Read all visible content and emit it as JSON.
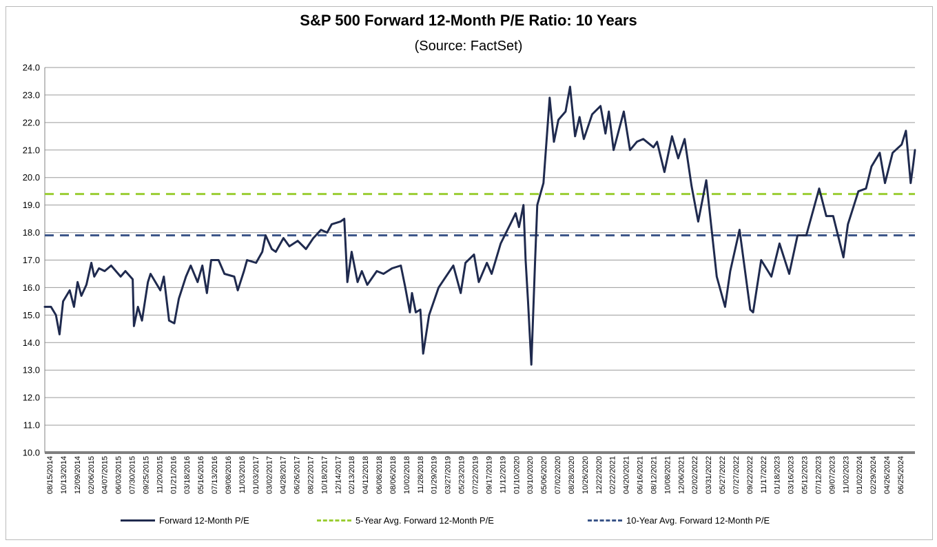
{
  "chart_data": {
    "type": "line",
    "title": "S&P 500 Forward 12-Month P/E Ratio: 10 Years",
    "subtitle": "(Source: FactSet)",
    "ylim": [
      10.0,
      24.0
    ],
    "yticks": [
      "10.0",
      "11.0",
      "12.0",
      "13.0",
      "14.0",
      "15.0",
      "16.0",
      "17.0",
      "18.0",
      "19.0",
      "20.0",
      "21.0",
      "22.0",
      "23.0",
      "24.0"
    ],
    "grid": true,
    "legend_position": "bottom",
    "xlim": [
      "2014-08-15",
      "2024-08-23"
    ],
    "xtick_labels": [
      "08/15/2014",
      "10/13/2014",
      "12/09/2014",
      "02/06/2015",
      "04/07/2015",
      "06/03/2015",
      "07/30/2015",
      "09/25/2015",
      "11/20/2015",
      "01/21/2016",
      "03/18/2016",
      "05/16/2016",
      "07/13/2016",
      "09/08/2016",
      "11/03/2016",
      "01/03/2017",
      "03/02/2017",
      "04/28/2017",
      "06/26/2017",
      "08/22/2017",
      "10/18/2017",
      "12/14/2017",
      "02/13/2018",
      "04/12/2018",
      "06/08/2018",
      "08/06/2018",
      "10/02/2018",
      "11/28/2018",
      "01/29/2019",
      "03/27/2019",
      "05/23/2019",
      "07/22/2019",
      "09/17/2019",
      "11/12/2019",
      "01/10/2020",
      "03/10/2020",
      "05/06/2020",
      "07/02/2020",
      "08/28/2020",
      "10/26/2020",
      "12/22/2020",
      "02/22/2021",
      "04/20/2021",
      "06/16/2021",
      "08/12/2021",
      "10/08/2021",
      "12/06/2021",
      "02/02/2022",
      "03/31/2022",
      "05/27/2022",
      "07/27/2022",
      "09/22/2022",
      "11/17/2022",
      "01/18/2023",
      "03/16/2023",
      "05/12/2023",
      "07/12/2023",
      "09/07/2023",
      "11/02/2023",
      "01/02/2024",
      "02/29/2024",
      "04/26/2024",
      "06/25/2024"
    ],
    "series": [
      {
        "name": "Forward 12-Month P/E",
        "color": "#1f2a4e",
        "style": "solid",
        "points": [
          [
            "2014-08-15",
            15.3
          ],
          [
            "2014-09-10",
            15.3
          ],
          [
            "2014-10-01",
            15.0
          ],
          [
            "2014-10-16",
            14.3
          ],
          [
            "2014-10-31",
            15.5
          ],
          [
            "2014-11-28",
            15.9
          ],
          [
            "2014-12-16",
            15.3
          ],
          [
            "2014-12-31",
            16.2
          ],
          [
            "2015-01-16",
            15.7
          ],
          [
            "2015-02-06",
            16.1
          ],
          [
            "2015-02-27",
            16.9
          ],
          [
            "2015-03-11",
            16.4
          ],
          [
            "2015-03-31",
            16.7
          ],
          [
            "2015-04-24",
            16.6
          ],
          [
            "2015-05-21",
            16.8
          ],
          [
            "2015-06-30",
            16.4
          ],
          [
            "2015-07-20",
            16.6
          ],
          [
            "2015-08-20",
            16.3
          ],
          [
            "2015-08-25",
            14.6
          ],
          [
            "2015-09-11",
            15.3
          ],
          [
            "2015-09-28",
            14.8
          ],
          [
            "2015-10-23",
            16.2
          ],
          [
            "2015-11-03",
            16.5
          ],
          [
            "2015-12-14",
            15.9
          ],
          [
            "2015-12-29",
            16.4
          ],
          [
            "2016-01-20",
            14.8
          ],
          [
            "2016-02-11",
            14.7
          ],
          [
            "2016-03-01",
            15.6
          ],
          [
            "2016-03-31",
            16.4
          ],
          [
            "2016-04-20",
            16.8
          ],
          [
            "2016-05-19",
            16.2
          ],
          [
            "2016-06-08",
            16.8
          ],
          [
            "2016-06-27",
            15.8
          ],
          [
            "2016-07-15",
            17.0
          ],
          [
            "2016-08-15",
            17.0
          ],
          [
            "2016-09-09",
            16.5
          ],
          [
            "2016-10-20",
            16.4
          ],
          [
            "2016-11-04",
            15.9
          ],
          [
            "2016-11-30",
            16.6
          ],
          [
            "2016-12-13",
            17.0
          ],
          [
            "2017-01-20",
            16.9
          ],
          [
            "2017-02-15",
            17.3
          ],
          [
            "2017-03-01",
            17.9
          ],
          [
            "2017-03-27",
            17.4
          ],
          [
            "2017-04-13",
            17.3
          ],
          [
            "2017-05-15",
            17.8
          ],
          [
            "2017-06-09",
            17.5
          ],
          [
            "2017-07-14",
            17.7
          ],
          [
            "2017-08-18",
            17.4
          ],
          [
            "2017-09-18",
            17.8
          ],
          [
            "2017-10-20",
            18.1
          ],
          [
            "2017-11-15",
            18.0
          ],
          [
            "2017-12-04",
            18.3
          ],
          [
            "2018-01-10",
            18.4
          ],
          [
            "2018-01-26",
            18.5
          ],
          [
            "2018-02-08",
            16.2
          ],
          [
            "2018-02-26",
            17.3
          ],
          [
            "2018-03-23",
            16.2
          ],
          [
            "2018-04-10",
            16.6
          ],
          [
            "2018-05-03",
            16.1
          ],
          [
            "2018-06-12",
            16.6
          ],
          [
            "2018-07-10",
            16.5
          ],
          [
            "2018-08-15",
            16.7
          ],
          [
            "2018-09-21",
            16.8
          ],
          [
            "2018-10-10",
            16.0
          ],
          [
            "2018-10-29",
            15.1
          ],
          [
            "2018-11-07",
            15.8
          ],
          [
            "2018-11-23",
            15.1
          ],
          [
            "2018-12-12",
            15.2
          ],
          [
            "2018-12-24",
            13.6
          ],
          [
            "2019-01-18",
            15.0
          ],
          [
            "2019-02-27",
            16.0
          ],
          [
            "2019-03-22",
            16.3
          ],
          [
            "2019-04-30",
            16.8
          ],
          [
            "2019-05-31",
            15.8
          ],
          [
            "2019-06-20",
            16.9
          ],
          [
            "2019-07-26",
            17.2
          ],
          [
            "2019-08-15",
            16.2
          ],
          [
            "2019-09-18",
            16.9
          ],
          [
            "2019-10-08",
            16.5
          ],
          [
            "2019-11-15",
            17.6
          ],
          [
            "2019-12-31",
            18.4
          ],
          [
            "2020-01-17",
            18.7
          ],
          [
            "2020-01-31",
            18.2
          ],
          [
            "2020-02-19",
            19.0
          ],
          [
            "2020-02-28",
            17.0
          ],
          [
            "2020-03-09",
            15.5
          ],
          [
            "2020-03-23",
            13.2
          ],
          [
            "2020-04-08",
            17.0
          ],
          [
            "2020-04-17",
            19.0
          ],
          [
            "2020-05-13",
            19.8
          ],
          [
            "2020-06-08",
            22.9
          ],
          [
            "2020-06-26",
            21.3
          ],
          [
            "2020-07-15",
            22.1
          ],
          [
            "2020-08-14",
            22.4
          ],
          [
            "2020-09-02",
            23.3
          ],
          [
            "2020-09-23",
            21.5
          ],
          [
            "2020-10-12",
            22.2
          ],
          [
            "2020-10-30",
            21.4
          ],
          [
            "2020-12-04",
            22.3
          ],
          [
            "2021-01-08",
            22.6
          ],
          [
            "2021-01-29",
            21.6
          ],
          [
            "2021-02-12",
            22.4
          ],
          [
            "2021-03-04",
            21.0
          ],
          [
            "2021-04-16",
            22.4
          ],
          [
            "2021-05-12",
            21.0
          ],
          [
            "2021-06-10",
            21.3
          ],
          [
            "2021-07-07",
            21.4
          ],
          [
            "2021-08-19",
            21.1
          ],
          [
            "2021-09-03",
            21.3
          ],
          [
            "2021-10-04",
            20.2
          ],
          [
            "2021-11-05",
            21.5
          ],
          [
            "2021-12-01",
            20.7
          ],
          [
            "2021-12-28",
            21.4
          ],
          [
            "2022-01-26",
            19.7
          ],
          [
            "2022-02-23",
            18.4
          ],
          [
            "2022-03-29",
            19.9
          ],
          [
            "2022-05-12",
            16.4
          ],
          [
            "2022-06-16",
            15.3
          ],
          [
            "2022-07-08",
            16.6
          ],
          [
            "2022-08-16",
            18.1
          ],
          [
            "2022-09-30",
            15.2
          ],
          [
            "2022-10-12",
            15.1
          ],
          [
            "2022-11-15",
            17.0
          ],
          [
            "2022-12-28",
            16.4
          ],
          [
            "2023-01-31",
            17.6
          ],
          [
            "2023-03-13",
            16.5
          ],
          [
            "2023-04-17",
            17.9
          ],
          [
            "2023-05-24",
            17.9
          ],
          [
            "2023-07-17",
            19.6
          ],
          [
            "2023-08-16",
            18.6
          ],
          [
            "2023-09-14",
            18.6
          ],
          [
            "2023-10-27",
            17.1
          ],
          [
            "2023-11-15",
            18.3
          ],
          [
            "2023-12-29",
            19.5
          ],
          [
            "2024-01-30",
            19.6
          ],
          [
            "2024-02-22",
            20.4
          ],
          [
            "2024-03-28",
            20.9
          ],
          [
            "2024-04-19",
            19.8
          ],
          [
            "2024-05-21",
            20.9
          ],
          [
            "2024-06-28",
            21.2
          ],
          [
            "2024-07-16",
            21.7
          ],
          [
            "2024-08-05",
            19.8
          ],
          [
            "2024-08-16",
            20.5
          ],
          [
            "2024-08-23",
            21.0
          ]
        ]
      },
      {
        "name": "5-Year Avg. Forward 12-Month P/E",
        "color": "#9acd32",
        "style": "dashed",
        "value": 19.4
      },
      {
        "name": "10-Year Avg. Forward 12-Month P/E",
        "color": "#3a5488",
        "style": "dashed",
        "value": 17.9
      }
    ]
  }
}
